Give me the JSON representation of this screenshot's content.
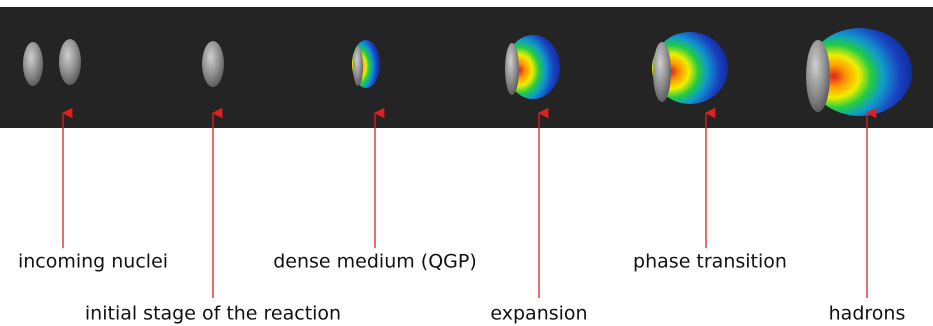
{
  "stages": [
    {
      "label": "incoming nuclei"
    },
    {
      "label": "initial stage of the reaction"
    },
    {
      "label": "dense medium (QGP)"
    },
    {
      "label": "expansion"
    },
    {
      "label": "phase transition"
    },
    {
      "label": "hadrons"
    }
  ]
}
